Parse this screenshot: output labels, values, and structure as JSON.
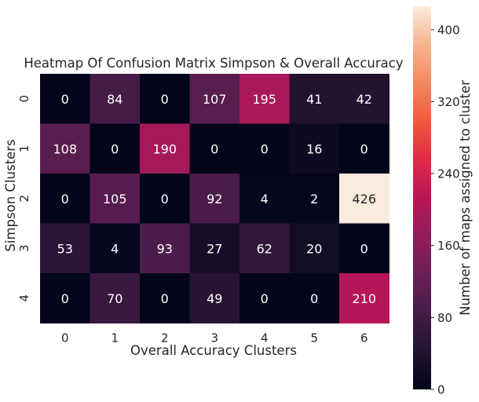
{
  "chart_data": {
    "type": "heatmap",
    "title": "Heatmap Of Confusion Matrix Simpson & Overall Accuracy",
    "xlabel": "Overall Accuracy Clusters",
    "ylabel": "Simpson Clusters",
    "x_categories": [
      "0",
      "1",
      "2",
      "3",
      "4",
      "5",
      "6"
    ],
    "y_categories": [
      "0",
      "1",
      "2",
      "3",
      "4"
    ],
    "values": [
      [
        0,
        84,
        0,
        107,
        195,
        41,
        42
      ],
      [
        108,
        0,
        190,
        0,
        0,
        16,
        0
      ],
      [
        0,
        105,
        0,
        92,
        4,
        2,
        426
      ],
      [
        53,
        4,
        93,
        27,
        62,
        20,
        0
      ],
      [
        0,
        70,
        0,
        49,
        0,
        0,
        210
      ]
    ],
    "colorbar": {
      "label": "Number of maps assigned to cluster",
      "vmin": 0,
      "vmax": 426,
      "ticks": [
        0,
        80,
        160,
        240,
        320,
        400
      ],
      "colormap": "rocket"
    },
    "annotations_shown": true,
    "grid": false
  }
}
